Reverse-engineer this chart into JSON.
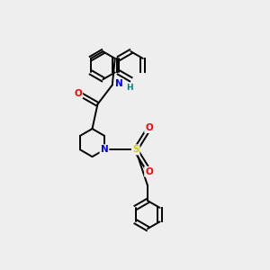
{
  "background_color": "#eeeeee",
  "bond_color": "#000000",
  "atom_colors": {
    "O": "#ff0000",
    "N": "#0000ff",
    "S": "#cccc00",
    "H": "#008080",
    "C": "#000000"
  },
  "figsize": [
    3.0,
    3.0
  ],
  "dpi": 100
}
